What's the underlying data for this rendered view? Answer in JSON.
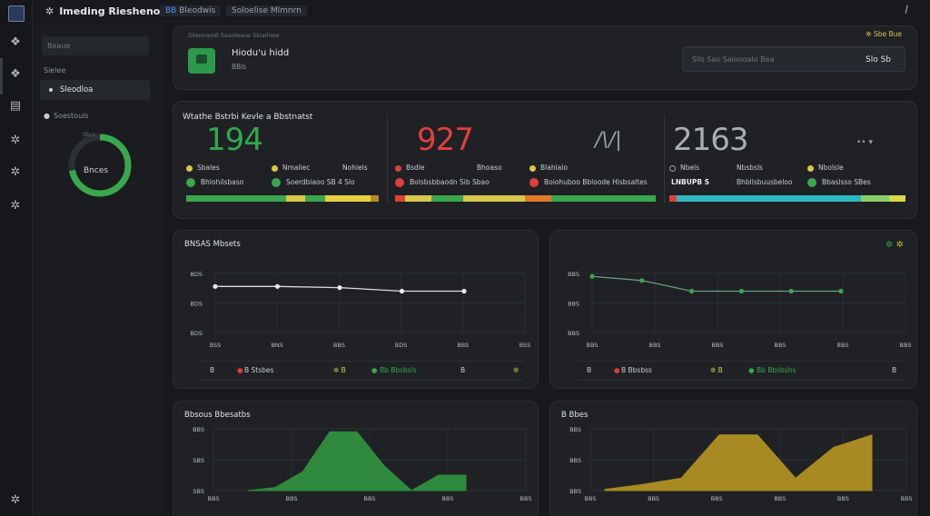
{
  "app": {
    "title": "Imeding Rieshenoel",
    "crumb1": "Bleodwis",
    "crumb1_accent": "BB",
    "crumb2": "Soloelise Mlmnrn"
  },
  "sidebar": {
    "search_placeholder": "Beaue",
    "section": "Sielee",
    "active_item": "Sleodloa",
    "sub_label": "Soestouls",
    "gauge": {
      "small": "Sbcs",
      "label": "Bnces",
      "value_fraction": 0.72,
      "color": "#3aa64e"
    }
  },
  "header": {
    "subtitle": "Sileonaodl Ssaoleaoe Skiaiheie",
    "name": "Hiodu'u hidd",
    "role": "BBls",
    "badge": "Sbe Bue",
    "input_placeholder": "Slis Sao Saioooalo Bea",
    "value": "Slo Sb"
  },
  "stats": {
    "title": "Wtathe Bstrbi Kevle a Bbstnatst",
    "columns": [
      {
        "value": "194",
        "color": "#2faa4a",
        "labels": [
          "Sbales",
          "Nmaliec",
          "Nohiels"
        ],
        "label_colors": [
          "#d8c84a",
          "#d8c84a",
          "#9aa0a8"
        ],
        "dot_a": "Bhlohilsbaso",
        "dot_b": "Soerdbiaoo",
        "dot_b_val": "SB 4 Slo",
        "dot_colors": [
          "#3aa64e",
          "#3aa64e"
        ]
      },
      {
        "value": "927",
        "color": "#e0403a",
        "labels": [
          "Bsdle",
          "Bhoaso",
          "Blahlalo"
        ],
        "label_colors": [
          "#e0403a",
          "#9aa0a8",
          "#d8c84a"
        ],
        "dot_a": "Bolsbsbbaodn",
        "dot_a_val": "Sib  Sbao",
        "dot_b": "Boiohuboo Bbloode Hlsbsaltes",
        "dot_colors": [
          "#e0403a",
          "#e0403a"
        ]
      },
      {
        "value": "2163",
        "color": "#a9aeb5",
        "labels": [
          "Nbels",
          "Nbsbsls",
          "Nbolsle"
        ],
        "label_colors": [
          "#9aa0a8",
          "#9aa0a8",
          "#d8c84a"
        ],
        "dot_a": "Bhbsbslo Slo",
        "dot_a_lead": "LNBUPB  S",
        "dot_b": "Bhbllsbuusbeloo",
        "dot_c": "Bbaslsso SBes",
        "dot_colors": [
          "#3aa64e",
          "#3aa64e"
        ]
      }
    ],
    "progress": [
      {
        "segments": [
          [
            "#3aa64e",
            0.52
          ],
          [
            "#d8c84a",
            0.1
          ],
          [
            "#3aa64e",
            0.1
          ],
          [
            "#e8d040",
            0.24
          ],
          [
            "#b58a2a",
            0.04
          ]
        ]
      },
      {
        "segments": [
          [
            "#e0403a",
            0.04
          ],
          [
            "#d8c84a",
            0.1
          ],
          [
            "#3aa64e",
            0.12
          ],
          [
            "#d8c84a",
            0.24
          ],
          [
            "#e07a2a",
            0.1
          ],
          [
            "#3aa64e",
            0.4
          ]
        ]
      },
      {
        "segments": [
          [
            "#e0403a",
            0.03
          ],
          [
            "#2fb7c0",
            0.78
          ],
          [
            "#8ad06a",
            0.12
          ],
          [
            "#d8d84a",
            0.07
          ]
        ]
      }
    ]
  },
  "line_chart_1": {
    "title": "BNSAS Mbsets",
    "y_ticks": [
      "BDS",
      "BDS",
      "BDS"
    ],
    "x_ticks": [
      "BSS",
      "BNS",
      "BBS",
      "BDS",
      "BBS",
      "BSS"
    ],
    "values": [
      0.78,
      0.78,
      0.76,
      0.7,
      0.7
    ],
    "legend": [
      "B",
      "B  Stsbes",
      "B",
      "Bb  Bbsbsls",
      "B",
      "B"
    ]
  },
  "line_chart_2": {
    "y_ticks": [
      "BBS",
      "BBS",
      "BBS"
    ],
    "x_ticks": [
      "BBS",
      "BBS",
      "BBS",
      "BBS",
      "BBS",
      "BBS"
    ],
    "values": [
      0.95,
      0.88,
      0.7,
      0.7,
      0.7,
      0.7
    ],
    "legend": [
      "B",
      "B  Bbsbss",
      "B",
      "Bb  Bbsbshs",
      "B"
    ]
  },
  "area_chart_1": {
    "title": "Bbsous Bbesatbs",
    "y_ticks": [
      "BBS",
      "SBS",
      "SBS"
    ],
    "x_ticks": [
      "BBS",
      "BBS",
      "BBS",
      "BBS",
      "BBS"
    ],
    "values": [
      0.0,
      0.05,
      0.3,
      0.95,
      0.95,
      0.4,
      0.0,
      0.25,
      0.25
    ],
    "color": "#2f8a3e"
  },
  "area_chart_2": {
    "title": "B Bbes",
    "y_ticks": [
      "BBS",
      "BBS",
      "BBS"
    ],
    "x_ticks": [
      "BBS",
      "BBS",
      "BBS",
      "BBS",
      "BBS",
      "BBS"
    ],
    "values": [
      0.02,
      0.1,
      0.2,
      0.9,
      0.9,
      0.2,
      0.7,
      0.9
    ],
    "color": "#a88a22"
  },
  "icons": {
    "rail": [
      "grid-icon",
      "box-icon",
      "calendar-icon",
      "gear-icon",
      "gear-icon",
      "gear-icon"
    ]
  }
}
